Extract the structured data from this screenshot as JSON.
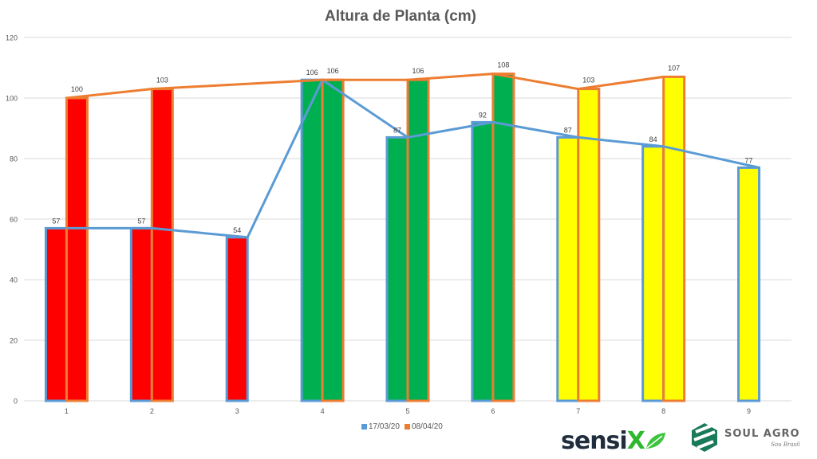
{
  "chart_data": {
    "type": "bar",
    "title": "Altura de Planta (cm)",
    "xlabel": "",
    "ylabel": "",
    "ylim": [
      0,
      120
    ],
    "y_ticks": [
      0,
      20,
      40,
      60,
      80,
      100,
      120
    ],
    "grid": true,
    "legend_position": "bottom",
    "categories": [
      "1",
      "2",
      "3",
      "4",
      "5",
      "6",
      "7",
      "8",
      "9"
    ],
    "series": [
      {
        "name": "17/03/20",
        "color": "#5B9BD5",
        "values": [
          57,
          57,
          54,
          106,
          87,
          92,
          87,
          84,
          77
        ],
        "render": "bar+line"
      },
      {
        "name": "08/04/20",
        "color": "#ED7D31",
        "values": [
          100,
          103,
          null,
          106,
          106,
          108,
          103,
          107,
          null
        ],
        "render": "bar+line"
      }
    ],
    "bar_fill_colors": [
      "#FF0000",
      "#FF0000",
      "#FF0000",
      "#00B050",
      "#00B050",
      "#00B050",
      "#FFFF00",
      "#FFFF00",
      "#FFFF00"
    ],
    "annotations": "Bar fill color groups categories: red (1-3), green (4-6), yellow (7-9)"
  },
  "legend": {
    "items": [
      {
        "label": "17/03/20",
        "color": "#5B9BD5"
      },
      {
        "label": "08/04/20",
        "color": "#ED7D31"
      }
    ]
  },
  "logos": {
    "sensix": {
      "text_main": "sensi",
      "text_x": "X"
    },
    "soul_agro": {
      "text": "SOUL AGRO",
      "subtext": "Sou Brasil"
    }
  }
}
